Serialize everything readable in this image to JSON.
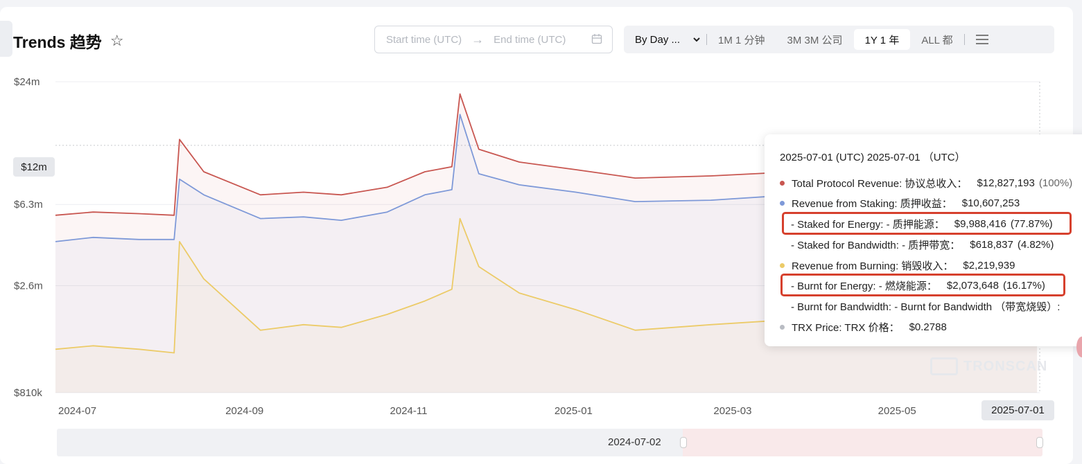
{
  "header": {
    "title": "Trends 趋势",
    "star_icon": "star-outline-icon",
    "start_placeholder": "Start time (UTC)",
    "end_placeholder": "End time (UTC)",
    "arrow_icon": "arrow-right-icon",
    "calendar_icon": "calendar-icon"
  },
  "range_controls": {
    "granularity": "By Day ...",
    "chevron_icon": "chevron-down-icon",
    "options": [
      "1M 1 分钟",
      "3M 3M 公司",
      "1Y 1 年",
      "ALL 都"
    ],
    "active": "1Y 1 年",
    "menu_icon": "menu-icon"
  },
  "chart_data": {
    "type": "line",
    "y_scale": "log",
    "y_ticks": [
      "$24m",
      "$12m",
      "$6.3m",
      "$2.6m",
      "$810k"
    ],
    "y_tick_values": [
      24000000,
      12000000,
      6300000,
      2600000,
      810000
    ],
    "x_ticks": [
      "2024-07",
      "2024-09",
      "2024-11",
      "2025-01",
      "2025-03",
      "2025-05"
    ],
    "x_range": [
      "2024-07-01",
      "2025-07-01"
    ],
    "grid": true,
    "highlighted_y": "$12m",
    "highlighted_x": "2025-07-01",
    "series": [
      {
        "name": "Total Protocol Revenue",
        "color": "#c85650",
        "x": [
          "2024-07-01",
          "2024-07-15",
          "2024-08-01",
          "2024-08-14",
          "2024-08-16",
          "2024-08-25",
          "2024-09-15",
          "2024-10-01",
          "2024-10-15",
          "2024-11-01",
          "2024-11-15",
          "2024-11-25",
          "2024-11-28",
          "2024-12-05",
          "2024-12-20",
          "2025-01-10",
          "2025-02-01",
          "2025-03-01",
          "2025-04-01",
          "2025-05-01",
          "2025-06-01",
          "2025-06-30"
        ],
        "values": [
          5.6,
          5.8,
          5.7,
          5.6,
          12.8,
          9.0,
          7.0,
          7.2,
          7.0,
          7.6,
          9.0,
          9.5,
          21.0,
          11.5,
          10.0,
          9.2,
          8.4,
          8.6,
          9.0,
          9.5,
          10.5,
          12.8
        ]
      },
      {
        "name": "Revenue from Staking",
        "color": "#7e99d8",
        "x": [
          "2024-07-01",
          "2024-07-15",
          "2024-08-01",
          "2024-08-14",
          "2024-08-16",
          "2024-08-25",
          "2024-09-15",
          "2024-10-01",
          "2024-10-15",
          "2024-11-01",
          "2024-11-15",
          "2024-11-25",
          "2024-11-28",
          "2024-12-05",
          "2024-12-20",
          "2025-01-10",
          "2025-02-01",
          "2025-03-01",
          "2025-04-01",
          "2025-05-01",
          "2025-06-01",
          "2025-06-30"
        ],
        "values": [
          4.2,
          4.4,
          4.3,
          4.3,
          8.3,
          7.0,
          5.4,
          5.5,
          5.3,
          5.8,
          7.0,
          7.4,
          16.8,
          8.8,
          7.8,
          7.2,
          6.5,
          6.6,
          7.0,
          7.4,
          8.4,
          10.6
        ]
      },
      {
        "name": "Revenue from Burning",
        "color": "#eccb68",
        "x": [
          "2024-07-01",
          "2024-07-15",
          "2024-08-01",
          "2024-08-14",
          "2024-08-16",
          "2024-08-25",
          "2024-09-15",
          "2024-10-01",
          "2024-10-15",
          "2024-11-01",
          "2024-11-15",
          "2024-11-25",
          "2024-11-28",
          "2024-12-05",
          "2024-12-20",
          "2025-01-10",
          "2025-02-01",
          "2025-03-01",
          "2025-04-01",
          "2025-05-01",
          "2025-06-01",
          "2025-06-30"
        ],
        "values": [
          1.3,
          1.35,
          1.3,
          1.25,
          4.2,
          2.8,
          1.6,
          1.7,
          1.65,
          1.9,
          2.2,
          2.5,
          5.4,
          3.2,
          2.4,
          2.0,
          1.6,
          1.7,
          1.8,
          1.7,
          1.8,
          2.2
        ]
      }
    ]
  },
  "tooltip": {
    "title": "2025-07-01 (UTC)  2025-07-01 （UTC）",
    "total_label": "Total Protocol Revenue:  协议总收入：",
    "total_value": "$12,827,193",
    "total_pct": "(100%)",
    "staking_label": "Revenue from Staking:  质押收益：",
    "staking_value": "$10,607,253",
    "staked_energy_label": "- Staked for Energy:  - 质押能源：",
    "staked_energy_value": "$9,988,416",
    "staked_energy_pct": "(77.87%)",
    "staked_bw_label": "- Staked for Bandwidth:  - 质押带宽：",
    "staked_bw_value": "$618,837",
    "staked_bw_pct": "(4.82%)",
    "burning_label": "Revenue from Burning:  销毁收入：",
    "burning_value": "$2,219,939",
    "burnt_energy_label": "- Burnt for Energy:  - 燃烧能源：",
    "burnt_energy_value": "$2,073,648",
    "burnt_energy_pct": "(16.17%)",
    "burnt_bw_label": "- Burnt for Bandwidth:  - Burnt for Bandwidth （带宽烧毁）:",
    "price_label": "TRX Price:  TRX 价格：",
    "price_value": "$0.2788",
    "colors": {
      "total": "#c85650",
      "staking": "#7e99d8",
      "burning": "#eccb68",
      "price": "#b9bcc3"
    }
  },
  "watermark": "TRONSCAN",
  "slider": {
    "label": "2024-07-02"
  }
}
